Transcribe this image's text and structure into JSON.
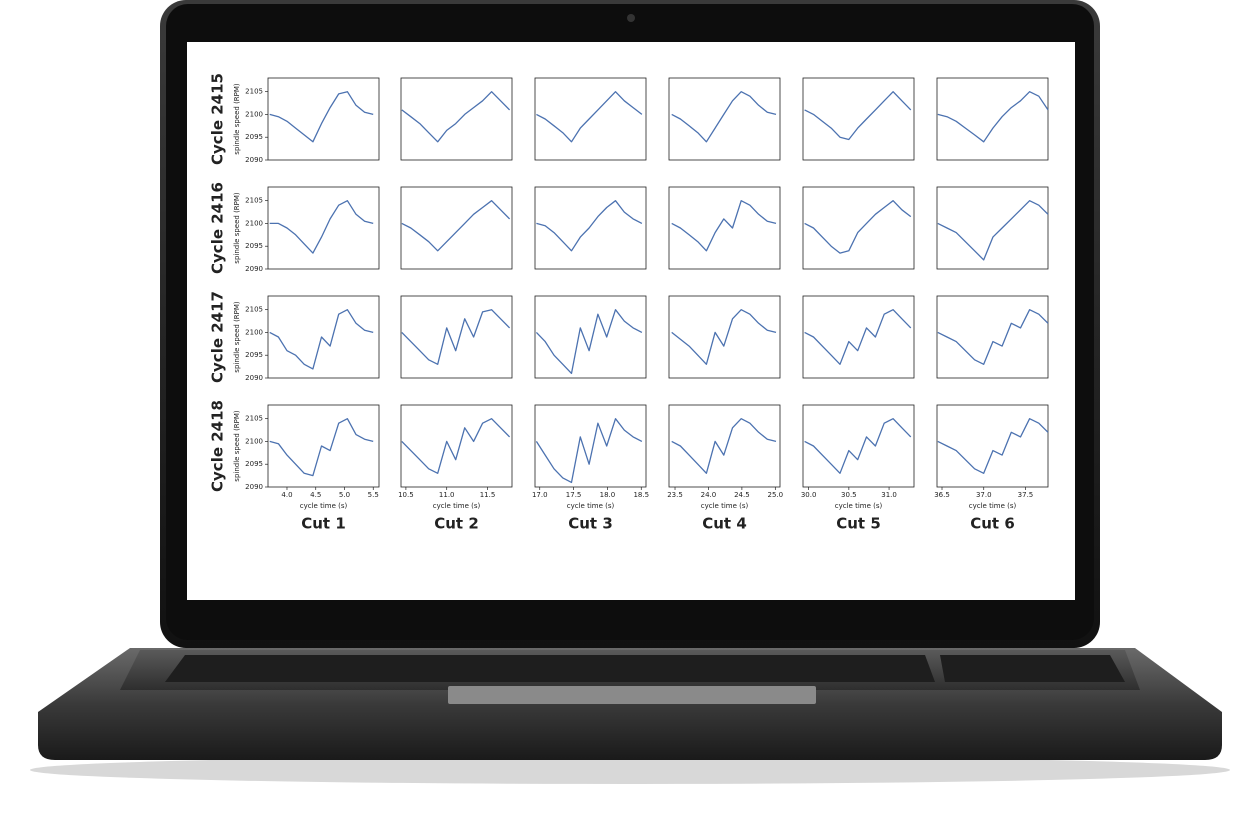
{
  "row_labels": [
    "Cycle 2415",
    "Cycle 2416",
    "Cycle 2417",
    "Cycle 2418"
  ],
  "column_labels": [
    "Cut 1",
    "Cut 2",
    "Cut 3",
    "Cut 4",
    "Cut 5",
    "Cut 6"
  ],
  "chart_data": [
    {
      "type": "line",
      "color": "#4c72b0",
      "xlim": [
        3.67,
        5.6
      ],
      "ylim": [
        2090,
        2108
      ],
      "ylabel": "spindle speed (RPM)",
      "yticks": [
        2090,
        2095,
        2100,
        2105
      ],
      "x": [
        3.7,
        3.85,
        4.0,
        4.15,
        4.3,
        4.45,
        4.6,
        4.75,
        4.9,
        5.05,
        5.2,
        5.35,
        5.5
      ],
      "values": [
        2100,
        2099.5,
        2098.5,
        2097,
        2095.5,
        2094,
        2098,
        2101.5,
        2104.5,
        2105,
        2102,
        2100.5,
        2100
      ]
    },
    {
      "type": "line",
      "color": "#4c72b0",
      "xlim": [
        10.44,
        11.8
      ],
      "ylim": [
        2090,
        2108
      ],
      "x": [
        10.45,
        10.56,
        10.67,
        10.78,
        10.89,
        11.0,
        11.11,
        11.22,
        11.33,
        11.44,
        11.55,
        11.66,
        11.77
      ],
      "values": [
        2101,
        2099.5,
        2098,
        2096,
        2094,
        2096.5,
        2098,
        2100,
        2101.5,
        2103,
        2105,
        2103,
        2101
      ]
    },
    {
      "type": "line",
      "color": "#4c72b0",
      "xlim": [
        16.93,
        18.57
      ],
      "ylim": [
        2090,
        2108
      ],
      "x": [
        16.95,
        17.08,
        17.21,
        17.34,
        17.47,
        17.6,
        17.73,
        17.86,
        17.99,
        18.12,
        18.25,
        18.38,
        18.51
      ],
      "values": [
        2100,
        2099,
        2097.5,
        2096,
        2094,
        2097,
        2099,
        2101,
        2103,
        2105,
        2103,
        2101.5,
        2100
      ]
    },
    {
      "type": "line",
      "color": "#4c72b0",
      "xlim": [
        23.41,
        25.07
      ],
      "ylim": [
        2090,
        2108
      ],
      "x": [
        23.45,
        23.58,
        23.71,
        23.84,
        23.97,
        24.1,
        24.23,
        24.36,
        24.49,
        24.62,
        24.75,
        24.88,
        25.01
      ],
      "values": [
        2100,
        2099,
        2097.5,
        2096,
        2094,
        2097,
        2100,
        2103,
        2105,
        2104,
        2102,
        2100.5,
        2100
      ]
    },
    {
      "type": "line",
      "color": "#4c72b0",
      "xlim": [
        29.93,
        31.31
      ],
      "ylim": [
        2090,
        2108
      ],
      "x": [
        29.95,
        30.06,
        30.17,
        30.28,
        30.39,
        30.5,
        30.61,
        30.72,
        30.83,
        30.94,
        31.05,
        31.16,
        31.27
      ],
      "values": [
        2101,
        2100,
        2098.5,
        2097,
        2095,
        2094.5,
        2097,
        2099,
        2101,
        2103,
        2105,
        2103,
        2101
      ]
    },
    {
      "type": "line",
      "color": "#4c72b0",
      "xlim": [
        36.44,
        37.77
      ],
      "ylim": [
        2090,
        2108
      ],
      "x": [
        36.45,
        36.56,
        36.67,
        36.78,
        36.89,
        37.0,
        37.11,
        37.22,
        37.33,
        37.44,
        37.55,
        37.66,
        37.77
      ],
      "values": [
        2100,
        2099.5,
        2098.5,
        2097,
        2095.5,
        2094,
        2097,
        2099.5,
        2101.5,
        2103,
        2105,
        2104,
        2101
      ]
    },
    {
      "type": "line",
      "color": "#4c72b0",
      "xlim": [
        3.67,
        5.6
      ],
      "ylim": [
        2090,
        2108
      ],
      "ylabel": "spindle speed (RPM)",
      "yticks": [
        2090,
        2095,
        2100,
        2105
      ],
      "x": [
        3.7,
        3.85,
        4.0,
        4.15,
        4.3,
        4.45,
        4.6,
        4.75,
        4.9,
        5.05,
        5.2,
        5.35,
        5.5
      ],
      "values": [
        2100,
        2100,
        2099,
        2097.5,
        2095.5,
        2093.5,
        2097,
        2101,
        2104,
        2105,
        2102,
        2100.5,
        2100
      ]
    },
    {
      "type": "line",
      "color": "#4c72b0",
      "xlim": [
        10.44,
        11.8
      ],
      "ylim": [
        2090,
        2108
      ],
      "x": [
        10.45,
        10.56,
        10.67,
        10.78,
        10.89,
        11.0,
        11.11,
        11.22,
        11.33,
        11.44,
        11.55,
        11.66,
        11.77
      ],
      "values": [
        2100,
        2099,
        2097.5,
        2096,
        2094,
        2096,
        2098,
        2100,
        2102,
        2103.5,
        2105,
        2103,
        2101
      ]
    },
    {
      "type": "line",
      "color": "#4c72b0",
      "xlim": [
        16.93,
        18.57
      ],
      "ylim": [
        2090,
        2108
      ],
      "x": [
        16.95,
        17.08,
        17.21,
        17.34,
        17.47,
        17.6,
        17.73,
        17.86,
        17.99,
        18.12,
        18.25,
        18.38,
        18.51
      ],
      "values": [
        2100,
        2099.5,
        2098,
        2096,
        2094,
        2097,
        2099,
        2101.5,
        2103.5,
        2105,
        2102.5,
        2101,
        2100
      ]
    },
    {
      "type": "line",
      "color": "#4c72b0",
      "xlim": [
        23.41,
        25.07
      ],
      "ylim": [
        2090,
        2108
      ],
      "x": [
        23.45,
        23.58,
        23.71,
        23.84,
        23.97,
        24.1,
        24.23,
        24.36,
        24.49,
        24.62,
        24.75,
        24.88,
        25.01
      ],
      "values": [
        2100,
        2099,
        2097.5,
        2096,
        2094,
        2098,
        2101,
        2099,
        2105,
        2104,
        2102,
        2100.5,
        2100
      ]
    },
    {
      "type": "line",
      "color": "#4c72b0",
      "xlim": [
        29.93,
        31.31
      ],
      "ylim": [
        2090,
        2108
      ],
      "x": [
        29.95,
        30.06,
        30.17,
        30.28,
        30.39,
        30.5,
        30.61,
        30.72,
        30.83,
        30.94,
        31.05,
        31.16,
        31.27
      ],
      "values": [
        2100,
        2099,
        2097,
        2095,
        2093.5,
        2094,
        2098,
        2100,
        2102,
        2103.5,
        2105,
        2103,
        2101.5
      ]
    },
    {
      "type": "line",
      "color": "#4c72b0",
      "xlim": [
        36.44,
        37.77
      ],
      "ylim": [
        2090,
        2108
      ],
      "x": [
        36.45,
        36.56,
        36.67,
        36.78,
        36.89,
        37.0,
        37.11,
        37.22,
        37.33,
        37.44,
        37.55,
        37.66,
        37.77
      ],
      "values": [
        2100,
        2099,
        2098,
        2096,
        2094,
        2092,
        2097,
        2099,
        2101,
        2103,
        2105,
        2104,
        2102
      ]
    },
    {
      "type": "line",
      "color": "#4c72b0",
      "xlim": [
        3.67,
        5.6
      ],
      "ylim": [
        2090,
        2108
      ],
      "ylabel": "spindle speed (RPM)",
      "yticks": [
        2090,
        2095,
        2100,
        2105
      ],
      "x": [
        3.7,
        3.85,
        4.0,
        4.15,
        4.3,
        4.45,
        4.6,
        4.75,
        4.9,
        5.05,
        5.2,
        5.35,
        5.5
      ],
      "values": [
        2100,
        2099,
        2096,
        2095,
        2093,
        2092,
        2099,
        2097,
        2104,
        2105,
        2102,
        2100.5,
        2100
      ]
    },
    {
      "type": "line",
      "color": "#4c72b0",
      "xlim": [
        10.44,
        11.8
      ],
      "ylim": [
        2090,
        2108
      ],
      "x": [
        10.45,
        10.56,
        10.67,
        10.78,
        10.89,
        11.0,
        11.11,
        11.22,
        11.33,
        11.44,
        11.55,
        11.66,
        11.77
      ],
      "values": [
        2100,
        2098,
        2096,
        2094,
        2093,
        2101,
        2096,
        2103,
        2099,
        2104.5,
        2105,
        2103,
        2101
      ]
    },
    {
      "type": "line",
      "color": "#4c72b0",
      "xlim": [
        16.93,
        18.57
      ],
      "ylim": [
        2090,
        2108
      ],
      "x": [
        16.95,
        17.08,
        17.21,
        17.34,
        17.47,
        17.6,
        17.73,
        17.86,
        17.99,
        18.12,
        18.25,
        18.38,
        18.51
      ],
      "values": [
        2100,
        2098,
        2095,
        2093,
        2091,
        2101,
        2096,
        2104,
        2099,
        2105,
        2102.5,
        2101,
        2100
      ]
    },
    {
      "type": "line",
      "color": "#4c72b0",
      "xlim": [
        23.41,
        25.07
      ],
      "ylim": [
        2090,
        2108
      ],
      "x": [
        23.45,
        23.58,
        23.71,
        23.84,
        23.97,
        24.1,
        24.23,
        24.36,
        24.49,
        24.62,
        24.75,
        24.88,
        25.01
      ],
      "values": [
        2100,
        2098.5,
        2097,
        2095,
        2093,
        2100,
        2097,
        2103,
        2105,
        2104,
        2102,
        2100.5,
        2100
      ]
    },
    {
      "type": "line",
      "color": "#4c72b0",
      "xlim": [
        29.93,
        31.31
      ],
      "ylim": [
        2090,
        2108
      ],
      "x": [
        29.95,
        30.06,
        30.17,
        30.28,
        30.39,
        30.5,
        30.61,
        30.72,
        30.83,
        30.94,
        31.05,
        31.16,
        31.27
      ],
      "values": [
        2100,
        2099,
        2097,
        2095,
        2093,
        2098,
        2096,
        2101,
        2099,
        2104,
        2105,
        2103,
        2101
      ]
    },
    {
      "type": "line",
      "color": "#4c72b0",
      "xlim": [
        36.44,
        37.77
      ],
      "ylim": [
        2090,
        2108
      ],
      "x": [
        36.45,
        36.56,
        36.67,
        36.78,
        36.89,
        37.0,
        37.11,
        37.22,
        37.33,
        37.44,
        37.55,
        37.66,
        37.77
      ],
      "values": [
        2100,
        2099,
        2098,
        2096,
        2094,
        2093,
        2098,
        2097,
        2102,
        2101,
        2105,
        2104,
        2102
      ]
    },
    {
      "type": "line",
      "color": "#4c72b0",
      "xlim": [
        3.67,
        5.6
      ],
      "ylim": [
        2090,
        2108
      ],
      "ylabel": "spindle speed (RPM)",
      "yticks": [
        2090,
        2095,
        2100,
        2105
      ],
      "xlabel": "cycle time (s)",
      "xticks": [
        {
          "value": 4,
          "label": "4.0"
        },
        4.5,
        {
          "value": 5,
          "label": "5.0"
        },
        5.5
      ],
      "x": [
        3.7,
        3.85,
        4.0,
        4.15,
        4.3,
        4.45,
        4.6,
        4.75,
        4.9,
        5.05,
        5.2,
        5.35,
        5.5
      ],
      "values": [
        2100,
        2099.5,
        2097,
        2095,
        2093,
        2092.5,
        2099,
        2098,
        2104,
        2105,
        2101.5,
        2100.5,
        2100
      ]
    },
    {
      "type": "line",
      "color": "#4c72b0",
      "xlim": [
        10.44,
        11.8
      ],
      "ylim": [
        2090,
        2108
      ],
      "xlabel": "cycle time (s)",
      "xticks": [
        10.5,
        {
          "value": 11,
          "label": "11.0"
        },
        11.5
      ],
      "x": [
        10.45,
        10.56,
        10.67,
        10.78,
        10.89,
        11.0,
        11.11,
        11.22,
        11.33,
        11.44,
        11.55,
        11.66,
        11.77
      ],
      "values": [
        2100,
        2098,
        2096,
        2094,
        2093,
        2100,
        2096,
        2103,
        2100,
        2104,
        2105,
        2103,
        2101
      ]
    },
    {
      "type": "line",
      "color": "#4c72b0",
      "xlim": [
        16.93,
        18.57
      ],
      "ylim": [
        2090,
        2108
      ],
      "xlabel": "cycle time (s)",
      "xticks": [
        {
          "value": 17,
          "label": "17.0"
        },
        17.5,
        {
          "value": 18,
          "label": "18.0"
        },
        18.5
      ],
      "x": [
        16.95,
        17.08,
        17.21,
        17.34,
        17.47,
        17.6,
        17.73,
        17.86,
        17.99,
        18.12,
        18.25,
        18.38,
        18.51
      ],
      "values": [
        2100,
        2097,
        2094,
        2092,
        2091,
        2101,
        2095,
        2104,
        2099,
        2105,
        2102.5,
        2101,
        2100
      ]
    },
    {
      "type": "line",
      "color": "#4c72b0",
      "xlim": [
        23.41,
        25.07
      ],
      "ylim": [
        2090,
        2108
      ],
      "xlabel": "cycle time (s)",
      "xticks": [
        23.5,
        {
          "value": 24,
          "label": "24.0"
        },
        24.5,
        {
          "value": 25,
          "label": "25.0"
        }
      ],
      "x": [
        23.45,
        23.58,
        23.71,
        23.84,
        23.97,
        24.1,
        24.23,
        24.36,
        24.49,
        24.62,
        24.75,
        24.88,
        25.01
      ],
      "values": [
        2100,
        2099,
        2097,
        2095,
        2093,
        2100,
        2097,
        2103,
        2105,
        2104,
        2102,
        2100.5,
        2100
      ]
    },
    {
      "type": "line",
      "color": "#4c72b0",
      "xlim": [
        29.93,
        31.31
      ],
      "ylim": [
        2090,
        2108
      ],
      "xlabel": "cycle time (s)",
      "xticks": [
        {
          "value": 30,
          "label": "30.0"
        },
        30.5,
        {
          "value": 31,
          "label": "31.0"
        }
      ],
      "x": [
        29.95,
        30.06,
        30.17,
        30.28,
        30.39,
        30.5,
        30.61,
        30.72,
        30.83,
        30.94,
        31.05,
        31.16,
        31.27
      ],
      "values": [
        2100,
        2099,
        2097,
        2095,
        2093,
        2098,
        2096,
        2101,
        2099,
        2104,
        2105,
        2103,
        2101
      ]
    },
    {
      "type": "line",
      "color": "#4c72b0",
      "xlim": [
        36.44,
        37.77
      ],
      "ylim": [
        2090,
        2108
      ],
      "xlabel": "cycle time (s)",
      "xticks": [
        36.5,
        {
          "value": 37,
          "label": "37.0"
        },
        37.5
      ],
      "x": [
        36.45,
        36.56,
        36.67,
        36.78,
        36.89,
        37.0,
        37.11,
        37.22,
        37.33,
        37.44,
        37.55,
        37.66,
        37.77
      ],
      "values": [
        2100,
        2099,
        2098,
        2096,
        2094,
        2093,
        2098,
        2097,
        2102,
        2101,
        2105,
        2104,
        2102
      ]
    }
  ]
}
